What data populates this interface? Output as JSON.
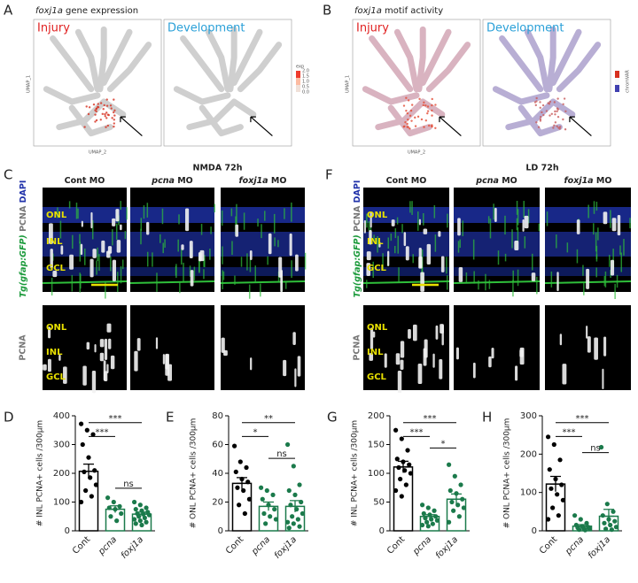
{
  "umap": [
    {
      "letter": "A",
      "gene": "foxj1a",
      "title": "gene expression",
      "left": "Injury",
      "right": "Development",
      "legend_title": "exp",
      "legend_ticks": [
        "2.0",
        "1.5",
        "1.0",
        "0.5",
        "0.0"
      ],
      "x_axis": "UMAP_2",
      "y_axis": "UMAP_1"
    },
    {
      "letter": "B",
      "gene": "foxj1a",
      "title": "motif activity",
      "left": "Injury",
      "right": "Development",
      "legend_title": "chromVAR",
      "x_axis": "UMAP_2",
      "y_axis": "UMAP_1"
    }
  ],
  "microscopy": [
    {
      "letter": "C",
      "condition": "NMDA 72h",
      "columns": [
        {
          "name": "Cont",
          "label": "MO"
        },
        {
          "name": "pcna",
          "label": "MO"
        },
        {
          "name": "foxj1a",
          "label": "MO"
        }
      ],
      "top_label_gene": "Tg(gfap:GFP)",
      "top_label_gray": "PCNA",
      "top_label_blue": "DAPI",
      "bottom_label": "PCNA",
      "layers": [
        "ONL",
        "INL",
        "GCL"
      ]
    },
    {
      "letter": "F",
      "condition": "LD 72h",
      "columns": [
        {
          "name": "Cont",
          "label": "MO"
        },
        {
          "name": "pcna",
          "label": "MO"
        },
        {
          "name": "foxj1a",
          "label": "MO"
        }
      ],
      "top_label_gene": "Tg(gfap:GFP)",
      "top_label_gray": "PCNA",
      "top_label_blue": "DAPI",
      "bottom_label": "PCNA",
      "layers": [
        "ONL",
        "INL",
        "GCL"
      ]
    }
  ],
  "chart_data": [
    {
      "type": "bar",
      "label": "D",
      "y_label": "# INL PCNA+ cells /300µm",
      "categories": [
        "Cont",
        "pcna",
        "foxj1a"
      ],
      "values": [
        207,
        75,
        58
      ],
      "errors": [
        25,
        12,
        7
      ],
      "colors": [
        "#000000",
        "#1b7a4b",
        "#1b7a4b"
      ],
      "points": [
        [
          372,
          350,
          335,
          300,
          255,
          210,
          205,
          185,
          160,
          140,
          120,
          100
        ],
        [
          115,
          100,
          85,
          80,
          75,
          60,
          50,
          35
        ],
        [
          100,
          90,
          80,
          75,
          70,
          65,
          60,
          58,
          55,
          50,
          45,
          40,
          35,
          30,
          25,
          20
        ]
      ],
      "ylim": [
        0,
        400
      ],
      "yticks": [
        0,
        100,
        200,
        300,
        400
      ],
      "annotations": [
        "***",
        "***",
        "ns"
      ]
    },
    {
      "type": "bar",
      "label": "E",
      "y_label": "# ONL PCNA+ cells /300µm",
      "categories": [
        "Cont",
        "pcna",
        "foxj1a"
      ],
      "values": [
        33,
        17,
        17
      ],
      "errors": [
        4,
        3,
        4
      ],
      "colors": [
        "#000000",
        "#1b7a4b",
        "#1b7a4b"
      ],
      "points": [
        [
          59,
          48,
          44,
          41,
          36,
          34,
          30,
          28,
          22,
          18,
          12
        ],
        [
          30,
          28,
          25,
          22,
          18,
          15,
          12,
          10,
          8,
          5
        ],
        [
          60,
          45,
          32,
          28,
          25,
          20,
          18,
          15,
          12,
          10,
          8,
          6,
          5,
          3,
          2
        ]
      ],
      "ylim": [
        0,
        80
      ],
      "yticks": [
        0,
        20,
        40,
        60,
        80
      ],
      "annotations": [
        "**",
        "*",
        "ns"
      ]
    },
    {
      "type": "bar",
      "label": "G",
      "y_label": "# INL PCNA+ cells /300µm",
      "categories": [
        "Cont",
        "pcna",
        "foxj1a"
      ],
      "values": [
        111,
        25,
        55
      ],
      "errors": [
        10,
        3,
        9
      ],
      "colors": [
        "#000000",
        "#1b7a4b",
        "#1b7a4b"
      ],
      "points": [
        [
          175,
          160,
          140,
          125,
          120,
          115,
          110,
          105,
          100,
          90,
          80,
          70,
          60
        ],
        [
          45,
          40,
          35,
          30,
          28,
          25,
          22,
          20,
          18,
          15,
          12,
          10,
          8
        ],
        [
          115,
          95,
          80,
          70,
          65,
          55,
          50,
          45,
          40,
          35,
          25,
          15
        ]
      ],
      "ylim": [
        0,
        200
      ],
      "yticks": [
        0,
        50,
        100,
        150,
        200
      ],
      "annotations": [
        "***",
        "***",
        "*"
      ]
    },
    {
      "type": "bar",
      "label": "H",
      "y_label": "# ONL PCNA+ cells /300µm",
      "categories": [
        "Cont",
        "pcna",
        "foxj1a"
      ],
      "values": [
        122,
        12,
        38
      ],
      "errors": [
        20,
        4,
        18
      ],
      "colors": [
        "#000000",
        "#1b7a4b",
        "#1b7a4b"
      ],
      "points": [
        [
          245,
          225,
          185,
          160,
          135,
          120,
          110,
          95,
          80,
          60,
          40,
          30
        ],
        [
          40,
          30,
          20,
          15,
          12,
          10,
          8,
          6,
          5,
          3,
          2
        ],
        [
          218,
          70,
          50,
          40,
          30,
          25,
          20,
          15,
          10,
          5,
          3
        ]
      ],
      "ylim": [
        0,
        300
      ],
      "yticks": [
        0,
        100,
        200,
        300
      ],
      "annotations": [
        "***",
        "***",
        "ns"
      ]
    }
  ]
}
